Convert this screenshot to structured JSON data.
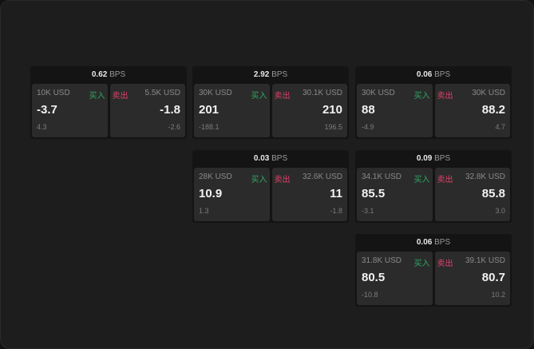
{
  "unit": "BPS",
  "buy_label": "买入",
  "sell_label": "卖出",
  "colors": {
    "buy": "#2ea862",
    "sell": "#e0406a"
  },
  "tiles": [
    {
      "spread": "0.62",
      "bid": {
        "size": "10K USD",
        "price": "-3.7",
        "change": "4.3"
      },
      "ask": {
        "size": "5.5K USD",
        "price": "-1.8",
        "change": "-2.6"
      }
    },
    {
      "spread": "2.92",
      "bid": {
        "size": "30K USD",
        "price": "201",
        "change": "-188.1"
      },
      "ask": {
        "size": "30.1K USD",
        "price": "210",
        "change": "196.5"
      }
    },
    {
      "spread": "0.06",
      "bid": {
        "size": "30K USD",
        "price": "88",
        "change": "-4.9"
      },
      "ask": {
        "size": "30K USD",
        "price": "88.2",
        "change": "4.7"
      }
    },
    {
      "spread": "0.03",
      "bid": {
        "size": "28K USD",
        "price": "10.9",
        "change": "1.3"
      },
      "ask": {
        "size": "32.6K USD",
        "price": "11",
        "change": "-1.8"
      }
    },
    {
      "spread": "0.09",
      "bid": {
        "size": "34.1K USD",
        "price": "85.5",
        "change": "-3.1"
      },
      "ask": {
        "size": "32.8K USD",
        "price": "85.8",
        "change": "3.0"
      }
    },
    {
      "spread": "0.06",
      "bid": {
        "size": "31.8K USD",
        "price": "80.5",
        "change": "-10.8"
      },
      "ask": {
        "size": "39.1K USD",
        "price": "80.7",
        "change": "10.2"
      }
    }
  ]
}
